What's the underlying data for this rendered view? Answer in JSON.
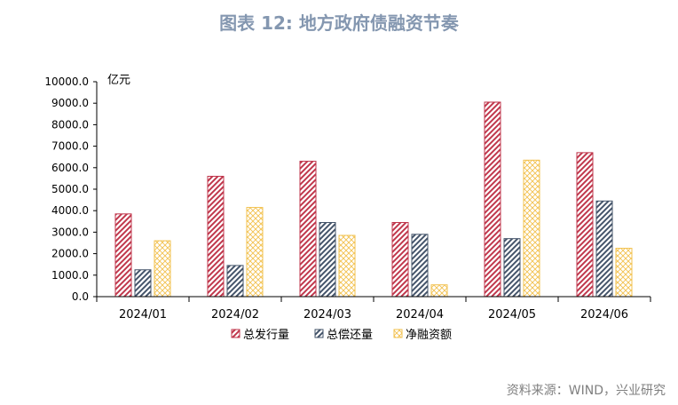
{
  "figure": {
    "title": "图表 12: 地方政府债融资节奏",
    "source": "资料来源：WIND，兴业研究"
  },
  "colors": {
    "issuance": "#c0374c",
    "repayment": "#44546a",
    "net_financing": "#f2c14e",
    "axis": "#000000",
    "title": "#8497b0"
  },
  "chart_data": {
    "type": "bar",
    "unit_label": "亿元",
    "categories": [
      "2024/01",
      "2024/02",
      "2024/03",
      "2024/04",
      "2024/05",
      "2024/06"
    ],
    "series": [
      {
        "name": "总发行量",
        "key": "issuance",
        "pattern": "diag",
        "values": [
          3850,
          5600,
          6300,
          3450,
          9050,
          6700
        ]
      },
      {
        "name": "总偿还量",
        "key": "repayment",
        "pattern": "diag",
        "values": [
          1250,
          1450,
          3450,
          2900,
          2700,
          4450
        ]
      },
      {
        "name": "净融资额",
        "key": "net_financing",
        "pattern": "cross",
        "values": [
          2600,
          4150,
          2850,
          550,
          6350,
          2250
        ]
      }
    ],
    "ylim": [
      0,
      10000
    ],
    "yticks": [
      "0.0",
      "1000.0",
      "2000.0",
      "3000.0",
      "4000.0",
      "5000.0",
      "6000.0",
      "7000.0",
      "8000.0",
      "9000.0",
      "10000.0"
    ],
    "grid": false,
    "legend": "bottom"
  }
}
